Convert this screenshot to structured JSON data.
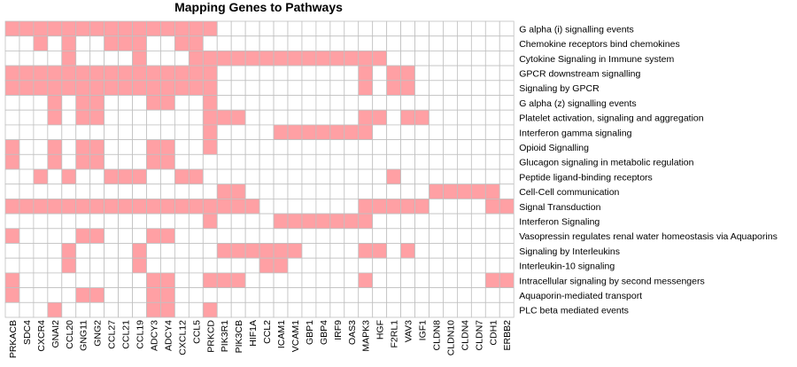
{
  "chart_data": {
    "type": "heatmap",
    "title": "Mapping Genes to Pathways",
    "fill_color": "#ffa0a4",
    "empty_color": "#ffffff",
    "grid_color": "#c0c0c0",
    "genes": [
      "PRKACB",
      "SDC4",
      "CXCR4",
      "GNAI2",
      "CCL20",
      "GNG11",
      "GNG2",
      "CCL27",
      "CCL21",
      "CCL19",
      "ADCY3",
      "ADCY4",
      "CXCL12",
      "CCL5",
      "PRKCD",
      "PIK3R1",
      "PIK3CB",
      "HIF1A",
      "CCL2",
      "ICAM1",
      "VCAM1",
      "GBP1",
      "GBP4",
      "IRF9",
      "OAS3",
      "MAPK3",
      "HGF",
      "F2RL1",
      "VAV3",
      "IGF1",
      "CLDN8",
      "CLDN10",
      "CLDN4",
      "CLDN7",
      "CDH1",
      "ERBB2"
    ],
    "pathways": [
      "G alpha (i) signalling events",
      "Chemokine receptors bind chemokines",
      "Cytokine Signaling in Immune system",
      "GPCR downstream signalling",
      "Signaling by GPCR",
      "G alpha (z) signalling events",
      "Platelet activation, signaling and aggregation",
      "Interferon gamma signaling",
      "Opioid Signalling",
      "Glucagon signaling in metabolic regulation",
      "Peptide ligand-binding receptors",
      "Cell-Cell communication",
      "Signal Transduction",
      "Interferon Signaling",
      "Vasopressin regulates renal water homeostasis via Aquaporins",
      "Signaling by Interleukins",
      "Interleukin-10 signaling",
      "Intracellular signaling by second messengers",
      "Aquaporin-mediated transport",
      "PLC beta mediated events"
    ],
    "matrix": [
      [
        1,
        1,
        1,
        1,
        1,
        1,
        1,
        1,
        1,
        1,
        1,
        1,
        1,
        1,
        1,
        0,
        0,
        0,
        0,
        0,
        0,
        0,
        0,
        0,
        0,
        0,
        0,
        0,
        0,
        0,
        0,
        0,
        0,
        0,
        0,
        0
      ],
      [
        0,
        0,
        1,
        0,
        1,
        0,
        0,
        1,
        1,
        1,
        0,
        0,
        1,
        1,
        0,
        0,
        0,
        0,
        0,
        0,
        0,
        0,
        0,
        0,
        0,
        0,
        0,
        0,
        0,
        0,
        0,
        0,
        0,
        0,
        0,
        0
      ],
      [
        0,
        0,
        0,
        0,
        1,
        0,
        0,
        0,
        0,
        1,
        0,
        0,
        0,
        1,
        1,
        1,
        1,
        1,
        1,
        1,
        1,
        1,
        1,
        1,
        1,
        1,
        1,
        0,
        0,
        0,
        0,
        0,
        0,
        0,
        0,
        0
      ],
      [
        1,
        1,
        1,
        1,
        1,
        1,
        1,
        1,
        1,
        1,
        1,
        1,
        1,
        1,
        1,
        0,
        0,
        0,
        0,
        0,
        0,
        0,
        0,
        0,
        0,
        1,
        0,
        1,
        1,
        0,
        0,
        0,
        0,
        0,
        0,
        0
      ],
      [
        1,
        1,
        1,
        1,
        1,
        1,
        1,
        1,
        1,
        1,
        1,
        1,
        1,
        1,
        1,
        0,
        0,
        0,
        0,
        0,
        0,
        0,
        0,
        0,
        0,
        1,
        0,
        1,
        1,
        0,
        0,
        0,
        0,
        0,
        0,
        0
      ],
      [
        0,
        0,
        0,
        1,
        0,
        1,
        1,
        0,
        0,
        0,
        1,
        1,
        0,
        0,
        1,
        0,
        0,
        0,
        0,
        0,
        0,
        0,
        0,
        0,
        0,
        0,
        0,
        0,
        0,
        0,
        0,
        0,
        0,
        0,
        0,
        0
      ],
      [
        0,
        0,
        0,
        1,
        0,
        1,
        1,
        0,
        0,
        0,
        0,
        0,
        0,
        0,
        1,
        1,
        1,
        0,
        0,
        0,
        0,
        0,
        0,
        0,
        0,
        1,
        1,
        0,
        1,
        1,
        0,
        0,
        0,
        0,
        0,
        0
      ],
      [
        0,
        0,
        0,
        0,
        0,
        0,
        0,
        0,
        0,
        0,
        0,
        0,
        0,
        0,
        1,
        0,
        0,
        0,
        0,
        1,
        1,
        1,
        1,
        1,
        1,
        1,
        0,
        0,
        0,
        0,
        0,
        0,
        0,
        0,
        0,
        0
      ],
      [
        1,
        0,
        0,
        1,
        0,
        1,
        1,
        0,
        0,
        0,
        1,
        1,
        0,
        0,
        1,
        0,
        0,
        0,
        0,
        0,
        0,
        0,
        0,
        0,
        0,
        0,
        0,
        0,
        0,
        0,
        0,
        0,
        0,
        0,
        0,
        0
      ],
      [
        1,
        0,
        0,
        1,
        0,
        1,
        1,
        0,
        0,
        0,
        1,
        1,
        0,
        0,
        0,
        0,
        0,
        0,
        0,
        0,
        0,
        0,
        0,
        0,
        0,
        0,
        0,
        0,
        0,
        0,
        0,
        0,
        0,
        0,
        0,
        0
      ],
      [
        0,
        0,
        1,
        0,
        1,
        0,
        0,
        1,
        1,
        1,
        0,
        0,
        1,
        1,
        0,
        0,
        0,
        0,
        0,
        0,
        0,
        0,
        0,
        0,
        0,
        0,
        0,
        1,
        0,
        0,
        0,
        0,
        0,
        0,
        0,
        0
      ],
      [
        0,
        0,
        0,
        0,
        0,
        0,
        0,
        0,
        0,
        0,
        0,
        0,
        0,
        0,
        0,
        1,
        1,
        0,
        0,
        0,
        0,
        0,
        0,
        0,
        0,
        0,
        0,
        0,
        0,
        0,
        1,
        1,
        1,
        1,
        1,
        0
      ],
      [
        1,
        1,
        1,
        1,
        1,
        1,
        1,
        1,
        1,
        1,
        1,
        1,
        1,
        1,
        1,
        1,
        1,
        1,
        0,
        0,
        0,
        0,
        0,
        0,
        0,
        1,
        1,
        1,
        1,
        1,
        0,
        0,
        0,
        0,
        1,
        1
      ],
      [
        0,
        0,
        0,
        0,
        0,
        0,
        0,
        0,
        0,
        0,
        0,
        0,
        0,
        0,
        1,
        0,
        0,
        0,
        0,
        1,
        1,
        1,
        1,
        1,
        1,
        1,
        0,
        0,
        0,
        0,
        0,
        0,
        0,
        0,
        0,
        0
      ],
      [
        1,
        0,
        0,
        0,
        0,
        1,
        1,
        0,
        0,
        0,
        1,
        1,
        0,
        0,
        0,
        0,
        0,
        0,
        0,
        0,
        0,
        0,
        0,
        0,
        0,
        0,
        0,
        0,
        0,
        0,
        0,
        0,
        0,
        0,
        0,
        0
      ],
      [
        0,
        0,
        0,
        0,
        1,
        0,
        0,
        0,
        0,
        1,
        0,
        0,
        0,
        0,
        0,
        1,
        1,
        1,
        1,
        1,
        1,
        0,
        0,
        0,
        0,
        1,
        1,
        0,
        1,
        0,
        0,
        0,
        0,
        0,
        0,
        0
      ],
      [
        0,
        0,
        0,
        0,
        1,
        0,
        0,
        0,
        0,
        1,
        0,
        0,
        0,
        0,
        0,
        0,
        0,
        0,
        1,
        1,
        0,
        0,
        0,
        0,
        0,
        0,
        0,
        0,
        0,
        0,
        0,
        0,
        0,
        0,
        0,
        0
      ],
      [
        1,
        0,
        0,
        0,
        0,
        0,
        0,
        0,
        0,
        0,
        1,
        1,
        0,
        0,
        1,
        1,
        1,
        0,
        0,
        0,
        0,
        0,
        0,
        0,
        0,
        1,
        0,
        0,
        0,
        0,
        0,
        0,
        0,
        0,
        1,
        1
      ],
      [
        1,
        0,
        0,
        0,
        0,
        1,
        1,
        0,
        0,
        0,
        1,
        1,
        0,
        0,
        0,
        0,
        0,
        0,
        0,
        0,
        0,
        0,
        0,
        0,
        0,
        0,
        0,
        0,
        0,
        0,
        0,
        0,
        0,
        0,
        0,
        0
      ],
      [
        0,
        0,
        0,
        1,
        0,
        0,
        0,
        0,
        0,
        0,
        1,
        1,
        0,
        0,
        1,
        0,
        0,
        0,
        0,
        0,
        0,
        0,
        0,
        0,
        0,
        0,
        0,
        0,
        0,
        0,
        0,
        0,
        0,
        0,
        0,
        0
      ]
    ]
  }
}
